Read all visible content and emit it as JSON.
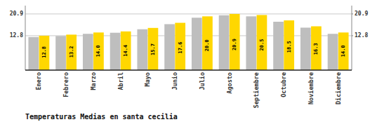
{
  "chart_data": {
    "type": "bar",
    "title": "Temperaturas Medias en santa cecilia",
    "categories": [
      "Enero",
      "Febrero",
      "Marzo",
      "Abril",
      "Mayo",
      "Junio",
      "Julio",
      "Agosto",
      "Septiembre",
      "Octubre",
      "Noviembre",
      "Diciembre"
    ],
    "series": [
      {
        "color": "#BEBEBE",
        "values": [
          12.3,
          12.7,
          13.5,
          13.9,
          15.2,
          17.1,
          19.5,
          20.4,
          20.0,
          18.0,
          15.8,
          13.5
        ]
      },
      {
        "color": "#FFD700",
        "values": [
          12.8,
          13.2,
          14.0,
          14.4,
          15.7,
          17.6,
          20.0,
          20.9,
          20.5,
          18.5,
          16.3,
          14.0
        ],
        "value_labels": [
          "12.8",
          "13.2",
          "14.0",
          "14.4",
          "15.7",
          "17.6",
          "20.0",
          "20.9",
          "20.5",
          "18.5",
          "16.3",
          "14.0"
        ],
        "data_labels": true
      }
    ],
    "ylim": [
      0,
      24.0
    ],
    "yticks": [
      12.8,
      20.9
    ],
    "y2lim": [
      0,
      24.0
    ],
    "y2ticks": [
      12.8,
      20.9
    ],
    "grid": true
  }
}
